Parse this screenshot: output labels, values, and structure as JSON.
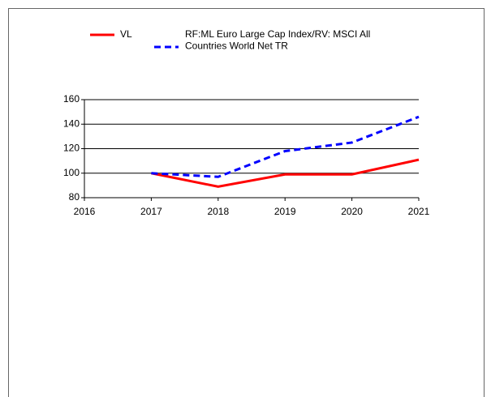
{
  "chart_data": {
    "type": "line",
    "x": [
      2017,
      2018,
      2019,
      2020,
      2021
    ],
    "series": [
      {
        "name": "VL",
        "color": "#ff0000",
        "dash": false,
        "values": [
          100,
          89,
          99,
          99,
          111
        ]
      },
      {
        "name": "RF:ML Euro Large Cap Index/RV: MSCI All Countries World Net TR",
        "color": "#0000ff",
        "dash": true,
        "values": [
          100,
          97,
          118,
          125,
          146
        ]
      }
    ],
    "xlim": [
      2016,
      2021
    ],
    "xticks": [
      2016,
      2017,
      2018,
      2019,
      2020,
      2021
    ],
    "ylim": [
      80,
      160
    ],
    "yticks": [
      80,
      100,
      120,
      140,
      160
    ],
    "grid": true
  }
}
